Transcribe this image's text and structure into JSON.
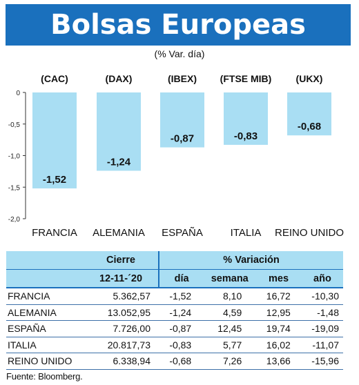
{
  "header": {
    "title": "Bolsas Europeas",
    "subtitle": "(% Var. día)"
  },
  "chart_data": {
    "type": "bar",
    "categories": [
      "FRANCIA",
      "ALEMANIA",
      "ESPAÑA",
      "ITALIA",
      "REINO UNIDO"
    ],
    "index_labels": [
      "(CAC)",
      "(DAX)",
      "(IBEX)",
      "(FTSE MIB)",
      "(UKX)"
    ],
    "values": [
      -1.52,
      -1.24,
      -0.87,
      -0.83,
      -0.68
    ],
    "value_labels": [
      "-1,52",
      "-1,24",
      "-0,87",
      "-0,83",
      "-0,68"
    ],
    "y_ticks": [
      0,
      -0.5,
      -1.0,
      -1.5,
      -2.0
    ],
    "y_tick_labels": [
      "0",
      "-0,5",
      "-1,0",
      "-1,5",
      "-2,0"
    ],
    "ylim": [
      -2.0,
      0
    ],
    "bar_color": "#a9def3",
    "grid": false
  },
  "table": {
    "group_headers": {
      "cierre": "Cierre",
      "variacion": "% Variación"
    },
    "date": "12-11-´20",
    "sub_headers": [
      "día",
      "semana",
      "mes",
      "año"
    ],
    "rows": [
      {
        "name": "FRANCIA",
        "cierre": "5.362,57",
        "dia": "-1,52",
        "semana": "8,10",
        "mes": "16,72",
        "ano": "-10,30"
      },
      {
        "name": "ALEMANIA",
        "cierre": "13.052,95",
        "dia": "-1,24",
        "semana": "4,59",
        "mes": "12,95",
        "ano": "-1,48"
      },
      {
        "name": "ESPAÑA",
        "cierre": "7.726,00",
        "dia": "-0,87",
        "semana": "12,45",
        "mes": "19,74",
        "ano": "-19,09"
      },
      {
        "name": "ITALIA",
        "cierre": "20.817,73",
        "dia": "-0,83",
        "semana": "5,77",
        "mes": "16,02",
        "ano": "-11,07"
      },
      {
        "name": "REINO UNIDO",
        "cierre": "6.338,94",
        "dia": "-0,68",
        "semana": "7,26",
        "mes": "13,66",
        "ano": "-15,96"
      }
    ]
  },
  "source": "Fuente: Bloomberg.",
  "colors": {
    "banner": "#1a70bd",
    "bar": "#a9def3",
    "table_header": "#a9def3",
    "rule": "#1a70bd"
  }
}
